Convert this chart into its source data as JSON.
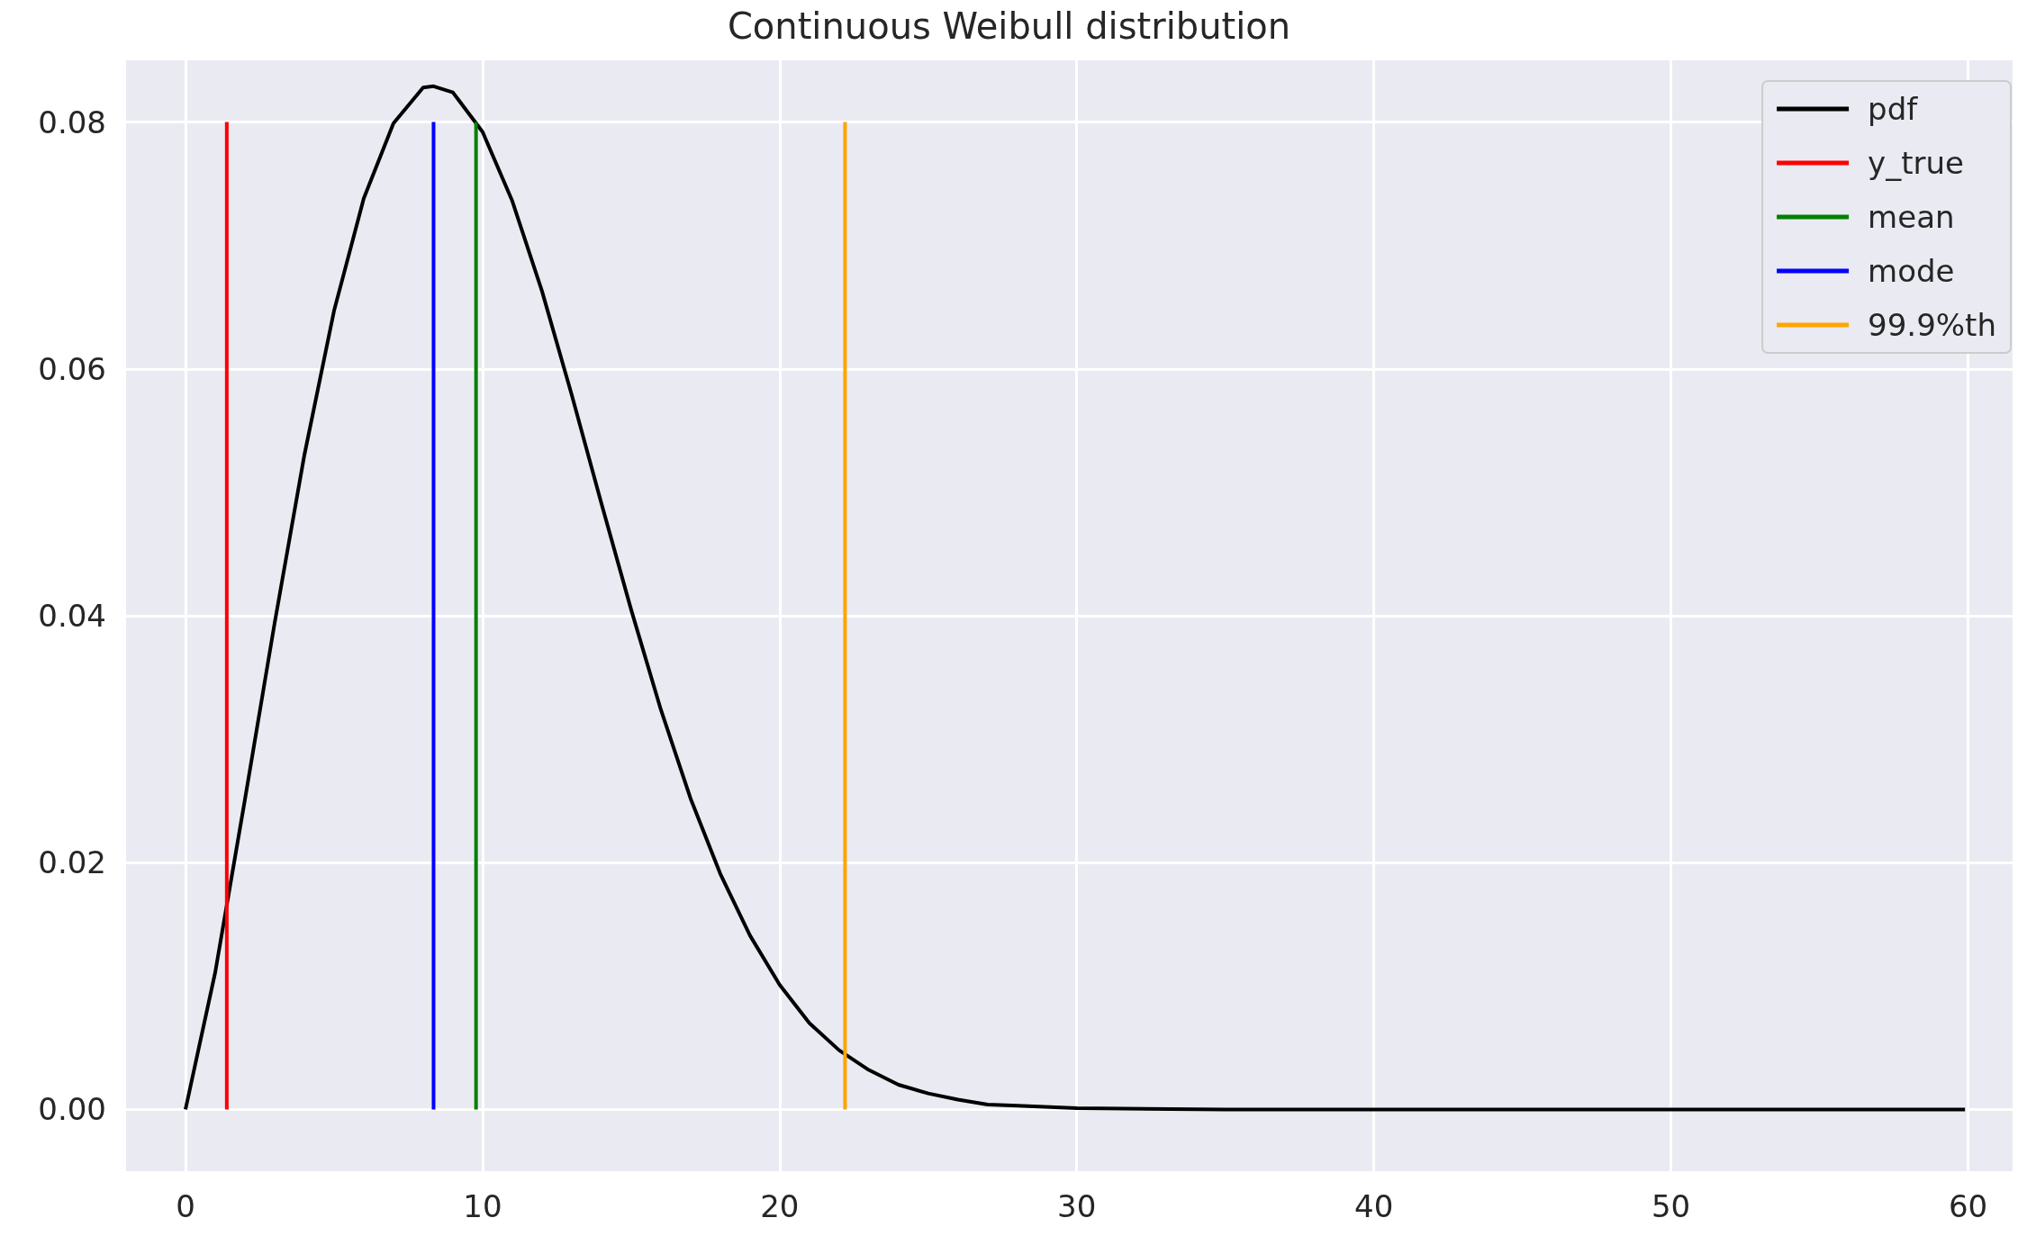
{
  "chart_data": {
    "type": "line",
    "title": "Continuous Weibull distribution",
    "xlim": [
      -2,
      61.5
    ],
    "ylim": [
      -0.005,
      0.085
    ],
    "xticks": [
      0,
      10,
      20,
      30,
      40,
      50,
      60
    ],
    "yticks": [
      {
        "value": 0,
        "label": "0.00"
      },
      {
        "value": 0.02,
        "label": "0.02"
      },
      {
        "value": 0.04,
        "label": "0.04"
      },
      {
        "value": 0.06,
        "label": "0.06"
      },
      {
        "value": 0.08,
        "label": "0.08"
      }
    ],
    "grid": true,
    "legend": "top right",
    "marker": "none",
    "line_style": "solid",
    "series": [
      {
        "name": "pdf",
        "color": "#000000",
        "x": [
          0,
          1,
          2,
          3,
          4,
          5,
          6,
          7,
          8,
          8.35,
          9,
          10,
          11,
          12,
          13,
          14,
          15,
          16,
          17,
          18,
          19,
          20,
          21,
          22,
          23,
          24,
          25,
          26,
          27,
          28,
          30,
          35,
          40,
          50,
          59.9
        ],
        "values": [
          0,
          0.0111,
          0.0251,
          0.0394,
          0.053,
          0.0647,
          0.0738,
          0.0799,
          0.0828,
          0.0829,
          0.0824,
          0.0792,
          0.0736,
          0.0663,
          0.0579,
          0.0491,
          0.0405,
          0.0324,
          0.0252,
          0.0191,
          0.0141,
          0.0101,
          0.007,
          0.0048,
          0.0032,
          0.002,
          0.0013,
          0.0008,
          0.0004,
          0.0003,
          0.0001,
          0,
          0,
          0,
          0
        ]
      },
      {
        "name": "y_true",
        "color": "#ff0000",
        "x": [
          1.39,
          1.39
        ],
        "values": [
          0,
          0.08
        ]
      },
      {
        "name": "mean",
        "color": "#008000",
        "x": [
          9.78,
          9.78
        ],
        "values": [
          0,
          0.08
        ]
      },
      {
        "name": "mode",
        "color": "#0000ff",
        "x": [
          8.35,
          8.35
        ],
        "values": [
          0,
          0.08
        ]
      },
      {
        "name": "99.9%th",
        "color": "#ffa500",
        "x": [
          22.2,
          22.2
        ],
        "values": [
          0,
          0.08
        ]
      }
    ]
  }
}
